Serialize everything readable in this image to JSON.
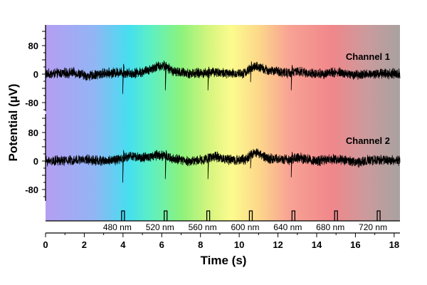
{
  "chart_data": {
    "type": "line",
    "xlabel": "Time (s)",
    "ylabel": "Potential (µV)",
    "xlim": [
      0,
      18.3
    ],
    "x_ticks": [
      0,
      2,
      4,
      6,
      8,
      10,
      12,
      14,
      16,
      18
    ],
    "y_ticks": [
      80,
      0,
      -80
    ],
    "background": "visible-spectrum gradient (violet → gray)",
    "series": [
      {
        "name": "Channel 1",
        "noise_amplitude_uV": 12,
        "keyframes": [
          [
            0,
            0
          ],
          [
            1.5,
            4
          ],
          [
            2.2,
            -6
          ],
          [
            3.0,
            2
          ],
          [
            3.9,
            5
          ],
          [
            4.4,
            2
          ],
          [
            5.0,
            6
          ],
          [
            5.8,
            22
          ],
          [
            6.1,
            24
          ],
          [
            6.7,
            6
          ],
          [
            7.5,
            2
          ],
          [
            8.3,
            3
          ],
          [
            8.7,
            7
          ],
          [
            9.5,
            0
          ],
          [
            10.3,
            4
          ],
          [
            10.8,
            22
          ],
          [
            11.5,
            10
          ],
          [
            12.6,
            3
          ],
          [
            13.0,
            7
          ],
          [
            14.0,
            0
          ],
          [
            15.0,
            5
          ],
          [
            16.0,
            -3
          ],
          [
            17.0,
            2
          ],
          [
            18.3,
            1
          ]
        ],
        "stimulus_spikes": [
          {
            "t": 4.0,
            "down_uV": -55,
            "up_uV": 28
          },
          {
            "t": 6.2,
            "down_uV": -45,
            "up_uV": 25
          },
          {
            "t": 8.4,
            "down_uV": -45,
            "up_uV": 20
          },
          {
            "t": 10.6,
            "down_uV": -22,
            "up_uV": 35
          },
          {
            "t": 12.7,
            "down_uV": -45,
            "up_uV": 25
          }
        ]
      },
      {
        "name": "Channel 2",
        "noise_amplitude_uV": 12,
        "keyframes": [
          [
            0,
            0
          ],
          [
            1.5,
            2
          ],
          [
            2.2,
            4
          ],
          [
            3.0,
            0
          ],
          [
            3.9,
            5
          ],
          [
            4.4,
            15
          ],
          [
            5.0,
            8
          ],
          [
            5.8,
            18
          ],
          [
            6.1,
            14
          ],
          [
            6.7,
            4
          ],
          [
            7.5,
            0
          ],
          [
            8.3,
            5
          ],
          [
            8.7,
            14
          ],
          [
            9.5,
            2
          ],
          [
            10.3,
            4
          ],
          [
            10.8,
            25
          ],
          [
            11.5,
            8
          ],
          [
            12.6,
            2
          ],
          [
            13.0,
            10
          ],
          [
            14.0,
            0
          ],
          [
            15.0,
            6
          ],
          [
            16.0,
            -4
          ],
          [
            17.0,
            4
          ],
          [
            18.3,
            1
          ]
        ],
        "stimulus_spikes": [
          {
            "t": 4.0,
            "down_uV": -60,
            "up_uV": 30
          },
          {
            "t": 6.2,
            "down_uV": -50,
            "up_uV": 30
          },
          {
            "t": 8.4,
            "down_uV": -50,
            "up_uV": 20
          },
          {
            "t": 10.6,
            "down_uV": -20,
            "up_uV": 30
          },
          {
            "t": 12.7,
            "down_uV": -45,
            "up_uV": 25
          }
        ]
      }
    ],
    "stimuli": [
      {
        "t": 4.0,
        "label": "480 nm"
      },
      {
        "t": 6.2,
        "label": "520 nm"
      },
      {
        "t": 8.4,
        "label": "560 nm"
      },
      {
        "t": 10.6,
        "label": "600 nm"
      },
      {
        "t": 12.8,
        "label": "640 nm"
      },
      {
        "t": 15.0,
        "label": "680 nm"
      },
      {
        "t": 17.2,
        "label": "720 nm"
      }
    ],
    "spectrum_colors": [
      {
        "t": 0,
        "color": "#b59ef2"
      },
      {
        "t": 2.5,
        "color": "#92b5f4"
      },
      {
        "t": 4.3,
        "color": "#45dff0"
      },
      {
        "t": 5.5,
        "color": "#5ff0c0"
      },
      {
        "t": 7.0,
        "color": "#8cf27c"
      },
      {
        "t": 8.4,
        "color": "#d3f57e"
      },
      {
        "t": 9.6,
        "color": "#fcfb8e"
      },
      {
        "t": 11.0,
        "color": "#fcd88a"
      },
      {
        "t": 12.6,
        "color": "#f8a294"
      },
      {
        "t": 14.8,
        "color": "#f0878b"
      },
      {
        "t": 16.5,
        "color": "#cd9a9c"
      },
      {
        "t": 18.3,
        "color": "#a8a2a0"
      }
    ]
  }
}
